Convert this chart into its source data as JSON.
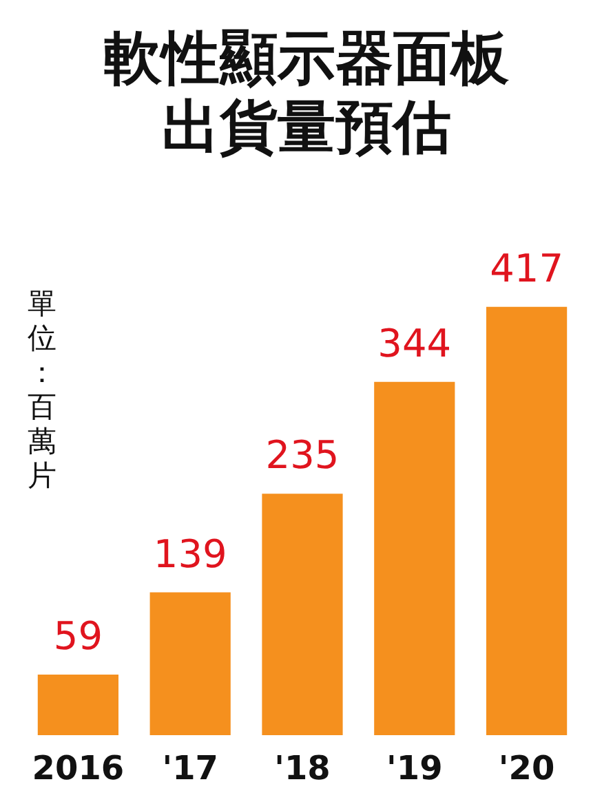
{
  "chart_data": {
    "type": "bar",
    "title": "軟性顯示器面板出貨量預估",
    "ylabel": "單位：百萬片",
    "categories": [
      "2016",
      "'17",
      "'18",
      "'19",
      "'20"
    ],
    "values": [
      59,
      139,
      235,
      344,
      417
    ],
    "color": "#f5901e",
    "data_labels": true
  }
}
